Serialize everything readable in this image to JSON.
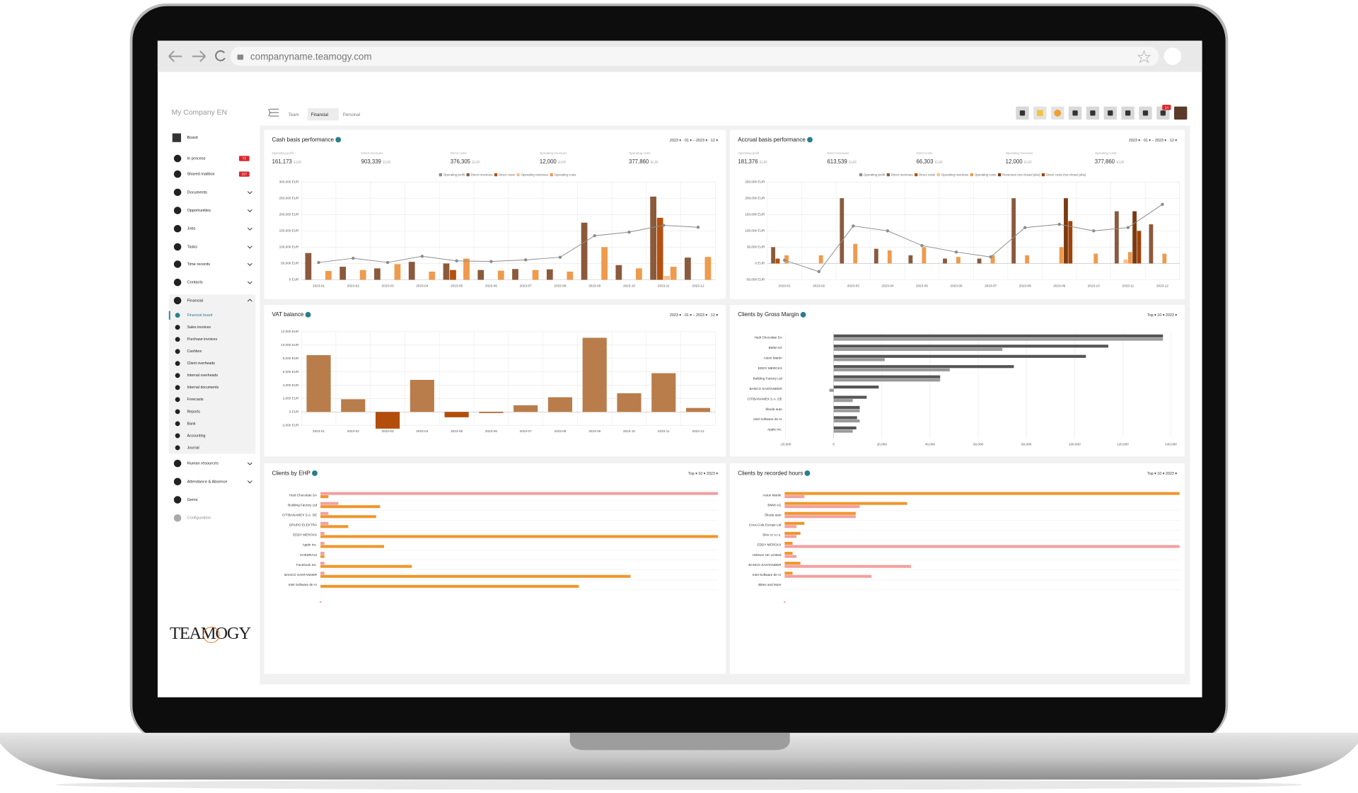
{
  "browser": {
    "url": "companyname.teamogy.com"
  },
  "sidebar": {
    "company": "My Company EN",
    "items": [
      {
        "label": "Board"
      },
      {
        "label": "In process",
        "badge": 73
      },
      {
        "label": "Shared mailbox",
        "badge": 157
      },
      {
        "label": "Documents"
      },
      {
        "label": "Opportunities"
      },
      {
        "label": "Jobs"
      },
      {
        "label": "Tasks"
      },
      {
        "label": "Time records"
      },
      {
        "label": "Contacts"
      },
      {
        "label": "Financial"
      }
    ],
    "financial_items": [
      "Financial board",
      "Sales invoices",
      "Purchase invoices",
      "Cashbox",
      "Client overheads",
      "Internal overheads",
      "Internal documents",
      "Forecasts",
      "Reports",
      "Bank",
      "Accounting",
      "Journal"
    ],
    "items_after": [
      {
        "label": "Human resources"
      },
      {
        "label": "Attendance & Absence"
      },
      {
        "label": "Gems"
      },
      {
        "label": "Configuration"
      }
    ],
    "logo": "TEAMOGY"
  },
  "tabs": [
    "Team",
    "Financial",
    "Personal"
  ],
  "notifications": 14,
  "panels": [
    {
      "title": "Cash basis performance",
      "period": "2023 ▾ · 01 ▾ – 2023 ▾ · 12 ▾",
      "kpis": [
        {
          "label": "Operating profit",
          "value": "161,173",
          "unit": "EUR"
        },
        {
          "label": "Direct revenues",
          "value": "903,339",
          "unit": "EUR"
        },
        {
          "label": "Direct costs",
          "value": "376,305",
          "unit": "EUR"
        },
        {
          "label": "Operating revenues",
          "value": "12,000",
          "unit": "EUR"
        },
        {
          "label": "Operating costs",
          "value": "377,860",
          "unit": "EUR"
        }
      ],
      "chart": {
        "type": "bar",
        "legend": "top",
        "grid": true,
        "categories": [
          "2023-01",
          "2023-02",
          "2023-03",
          "2023-04",
          "2023-05",
          "2023-06",
          "2023-07",
          "2023-08",
          "2023-09",
          "2023-10",
          "2023-11",
          "2023-12"
        ],
        "series": [
          {
            "name": "Operating profit",
            "type": "line",
            "color": "#8c8c8c",
            "values": [
              53000,
              66000,
              53000,
              72000,
              58000,
              56000,
              61000,
              69000,
              135000,
              146000,
              167000,
              161000
            ]
          },
          {
            "name": "Direct revenues",
            "type": "bar",
            "color": "#8b5a3c",
            "values": [
              82000,
              40000,
              35000,
              55000,
              50000,
              30000,
              33000,
              32000,
              175000,
              45000,
              255000,
              68000
            ]
          },
          {
            "name": "Direct costs",
            "type": "bar",
            "color": "#b5500e",
            "values": [
              0,
              0,
              0,
              0,
              30000,
              0,
              0,
              0,
              0,
              0,
              190000,
              0
            ]
          },
          {
            "name": "Operating revenues",
            "type": "bar",
            "color": "#f5c08f",
            "values": [
              0,
              0,
              0,
              0,
              0,
              0,
              0,
              0,
              0,
              0,
              12000,
              0
            ]
          },
          {
            "name": "Operating costs",
            "type": "bar",
            "color": "#ef9a4c",
            "values": [
              27000,
              30000,
              48000,
              25000,
              65000,
              28000,
              30000,
              25000,
              100000,
              35000,
              40000,
              70000
            ]
          }
        ],
        "ylim": [
          0,
          300000
        ],
        "yticks": [
          {
            "value": 0,
            "label": "0 EUR"
          },
          {
            "value": 50000,
            "label": "50,000 EUR"
          },
          {
            "value": 100000,
            "label": "100,000 EUR"
          },
          {
            "value": 150000,
            "label": "150,000 EUR"
          },
          {
            "value": 200000,
            "label": "200,000 EUR"
          },
          {
            "value": 250000,
            "label": "250,000 EUR"
          },
          {
            "value": 300000,
            "label": "300,000 EUR"
          }
        ]
      }
    },
    {
      "title": "Accrual basis performance",
      "period": "2023 ▾ · 01 ▾ – 2023 ▾ · 12 ▾",
      "kpis": [
        {
          "label": "Operating profit",
          "value": "181,376",
          "unit": "EUR"
        },
        {
          "label": "Direct revenues",
          "value": "613,539",
          "unit": "EUR"
        },
        {
          "label": "Direct costs",
          "value": "66,303",
          "unit": "EUR"
        },
        {
          "label": "Operating revenues",
          "value": "12,000",
          "unit": "EUR"
        },
        {
          "label": "Operating costs",
          "value": "377,860",
          "unit": "EUR"
        }
      ],
      "chart": {
        "type": "bar",
        "legend": "top",
        "grid": true,
        "categories": [
          "2023-01",
          "2023-02",
          "2023-03",
          "2023-04",
          "2023-05",
          "2023-06",
          "2023-07",
          "2023-08",
          "2023-09",
          "2023-10",
          "2023-11",
          "2023-12"
        ],
        "series": [
          {
            "name": "Operating profit",
            "type": "line",
            "color": "#8c8c8c",
            "values": [
              10000,
              -25000,
              115000,
              100000,
              55000,
              35000,
              20000,
              110000,
              120000,
              100000,
              110000,
              181000
            ]
          },
          {
            "name": "Direct revenues",
            "type": "bar",
            "color": "#8b5a3c",
            "values": [
              50000,
              0,
              200000,
              45000,
              25000,
              15000,
              15000,
              200000,
              0,
              0,
              160000,
              120000
            ]
          },
          {
            "name": "Direct costs",
            "type": "bar",
            "color": "#b5500e",
            "values": [
              15000,
              0,
              0,
              0,
              0,
              0,
              0,
              0,
              0,
              0,
              0,
              0
            ]
          },
          {
            "name": "Operating revenues",
            "type": "bar",
            "color": "#f5c08f",
            "values": [
              0,
              0,
              0,
              0,
              0,
              0,
              0,
              0,
              0,
              0,
              12000,
              0
            ]
          },
          {
            "name": "Operating costs",
            "type": "bar",
            "color": "#ef9a4c",
            "values": [
              25000,
              25000,
              60000,
              40000,
              50000,
              20000,
              25000,
              25000,
              50000,
              30000,
              35000,
              30000
            ]
          },
          {
            "name": "Revenues (not closed jobs)",
            "type": "bar",
            "color": "#7a3b10",
            "values": [
              0,
              0,
              0,
              0,
              0,
              0,
              0,
              0,
              200000,
              0,
              160000,
              0
            ]
          },
          {
            "name": "Direct costs (not closed jobs)",
            "type": "bar",
            "color": "#a0430a",
            "values": [
              0,
              0,
              0,
              0,
              0,
              0,
              0,
              0,
              130000,
              0,
              100000,
              0
            ]
          }
        ],
        "ylim": [
          -50000,
          250000
        ],
        "yticks": [
          {
            "value": -50000,
            "label": "-50,000 EUR"
          },
          {
            "value": 0,
            "label": "0 EUR"
          },
          {
            "value": 50000,
            "label": "50,000 EUR"
          },
          {
            "value": 100000,
            "label": "100,000 EUR"
          },
          {
            "value": 150000,
            "label": "150,000 EUR"
          },
          {
            "value": 200000,
            "label": "200,000 EUR"
          },
          {
            "value": 250000,
            "label": "250,000 EUR"
          }
        ]
      }
    },
    {
      "title": "VAT balance",
      "period": "2023 ▾ · 01 ▾ – 2023 ▾ · 12 ▾",
      "chart": {
        "type": "bar",
        "grid": true,
        "color": "#b87d4b",
        "negative_color": "#b34d0c",
        "categories": [
          "2023-01",
          "2023-02",
          "2023-03",
          "2023-04",
          "2023-05",
          "2023-06",
          "2023-07",
          "2023-08",
          "2023-09",
          "2023-10",
          "2023-11",
          "2023-12"
        ],
        "values": [
          8500,
          1900,
          -2500,
          4800,
          -800,
          -150,
          1000,
          2200,
          11100,
          2800,
          5800,
          600
        ],
        "ylim": [
          -2000,
          12000
        ],
        "yticks": [
          {
            "value": -2000,
            "label": "-2,000 EUR"
          },
          {
            "value": 0,
            "label": "0 EUR"
          },
          {
            "value": 2000,
            "label": "2,000 EUR"
          },
          {
            "value": 4000,
            "label": "4,000 EUR"
          },
          {
            "value": 6000,
            "label": "6,000 EUR"
          },
          {
            "value": 8000,
            "label": "8,000 EUR"
          },
          {
            "value": 10000,
            "label": "10,000 EUR"
          },
          {
            "value": 12000,
            "label": "12,000 EUR"
          }
        ]
      }
    },
    {
      "title": "Clients by Gross Margin",
      "period": "Top ▾ 10 ▾ 2023 ▾",
      "chart": {
        "type": "hbar",
        "grid": true,
        "categories": [
          "Hedi Chocolate SA",
          "BMW AG",
          "Aston Martin",
          "EDDY MERCKX",
          "Building Factory Ltd",
          "BANCO SANTANDER",
          "CITIBANAMEX S.A. DE",
          "Škoda auto",
          "Intel Software de Ar",
          "Apple Inc."
        ],
        "series": [
          {
            "color": "#555555",
            "values": [
              136700,
              114000,
              104700,
              74800,
              44200,
              18700,
              13700,
              10800,
              9700,
              9400
            ]
          },
          {
            "color": "#9a9a9a",
            "values": [
              136700,
              70000,
              21200,
              48200,
              44200,
              -1800,
              7900,
              10800,
              10800,
              7900
            ]
          }
        ],
        "xlim": [
          -20000,
          140000
        ],
        "xticks": [
          {
            "value": -20000,
            "label": "-20,000"
          },
          0,
          {
            "value": 20000,
            "label": "20,000"
          },
          {
            "value": 40000,
            "label": "40,000"
          },
          {
            "value": 60000,
            "label": "60,000"
          },
          {
            "value": 80000,
            "label": "80,000"
          },
          {
            "value": 100000,
            "label": "100,000"
          },
          {
            "value": 120000,
            "label": "120,000"
          },
          {
            "value": 140000,
            "label": "140,000"
          }
        ]
      }
    },
    {
      "title": "Clients by EHP",
      "period": "Top ▾ 10 ▾ 2023 ▾",
      "chart": {
        "type": "hbar",
        "grid": false,
        "categories": [
          "Hedi Chocolate SA",
          "Building Factory Ltd",
          "CITIBANAMEX S.A. DE",
          "GRUPO ELEKTRA",
          "EDDY MERCKX",
          "Apple Inc.",
          "CHEDRAUI",
          "Facebook Inc.",
          "BANCO SANTANDER",
          "Intel Software de Ar"
        ],
        "series": [
          {
            "color": "#f2a0a0",
            "values": [
              100,
              4.5,
              2,
              2,
              1,
              1,
              1,
              1,
              1,
              0
            ]
          },
          {
            "color": "#f0962a",
            "values": [
              2,
              15,
              14,
              7,
              100,
              16,
              1,
              23,
              78,
              65
            ]
          }
        ],
        "xlim": [
          0,
          100
        ]
      }
    },
    {
      "title": "Clients by recorded hours",
      "period": "Top ▾ 10 ▾ 2023 ▾",
      "chart": {
        "type": "hbar",
        "grid": false,
        "categories": [
          "Aston Martin",
          "BMW AG",
          "Škoda auto",
          "Coca Cola Europe Ltd",
          "Skio cz s.r.o.",
          "EDDY MERCKX",
          "Unilever UK Limited",
          "BANCO SANTANDER",
          "Intel Software de Ar",
          "Bikes and More"
        ],
        "series": [
          {
            "color": "#f0962a",
            "values": [
              100,
              31,
              18,
              5,
              4,
              2,
              2,
              4,
              2,
              0
            ]
          },
          {
            "color": "#f2a0a0",
            "values": [
              5,
              19,
              18,
              3,
              3,
              100,
              3,
              32,
              22,
              0
            ]
          }
        ],
        "xlim": [
          0,
          100
        ]
      }
    }
  ]
}
